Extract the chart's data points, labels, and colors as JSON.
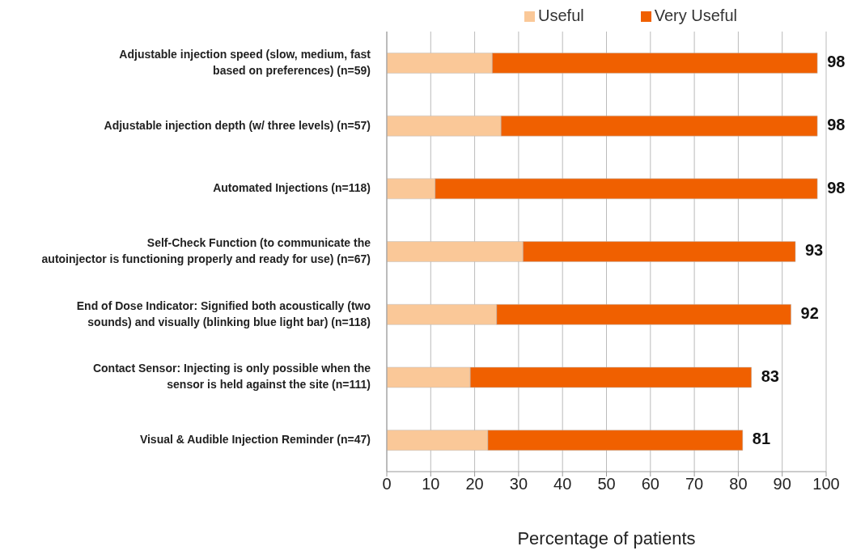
{
  "chart_data": {
    "type": "bar",
    "orientation": "horizontal",
    "stacked": true,
    "xlabel": "Percentage of patients",
    "categories": [
      "Adjustable injection speed (slow, medium, fast\nbased on preferences) (n=59)",
      "Adjustable injection depth (w/ three levels) (n=57)",
      "Automated Injections (n=118)",
      "Self-Check Function (to communicate the\nautoinjector is functioning properly and ready for use) (n=67)",
      "End of Dose Indicator: Signified both acoustically (two\nsounds) and visually (blinking blue light bar) (n=118)",
      "Contact Sensor: Injecting is only possible when the\nsensor is held against the site (n=111)",
      "Visual & Audible Injection Reminder (n=47)"
    ],
    "series": [
      {
        "name": "Useful",
        "color": "#fac898",
        "values": [
          24,
          26,
          11,
          31,
          25,
          19,
          23
        ]
      },
      {
        "name": "Very Useful",
        "color": "#f06000",
        "values": [
          74,
          72,
          87,
          62,
          67,
          64,
          58
        ]
      }
    ],
    "totals": [
      "98",
      "98",
      "98",
      "93",
      "92",
      "83",
      "81"
    ],
    "xlim": [
      0,
      100
    ],
    "xticks": [
      0,
      10,
      20,
      30,
      40,
      50,
      60,
      70,
      80,
      90,
      100
    ],
    "grid": "x",
    "legend": "top"
  }
}
